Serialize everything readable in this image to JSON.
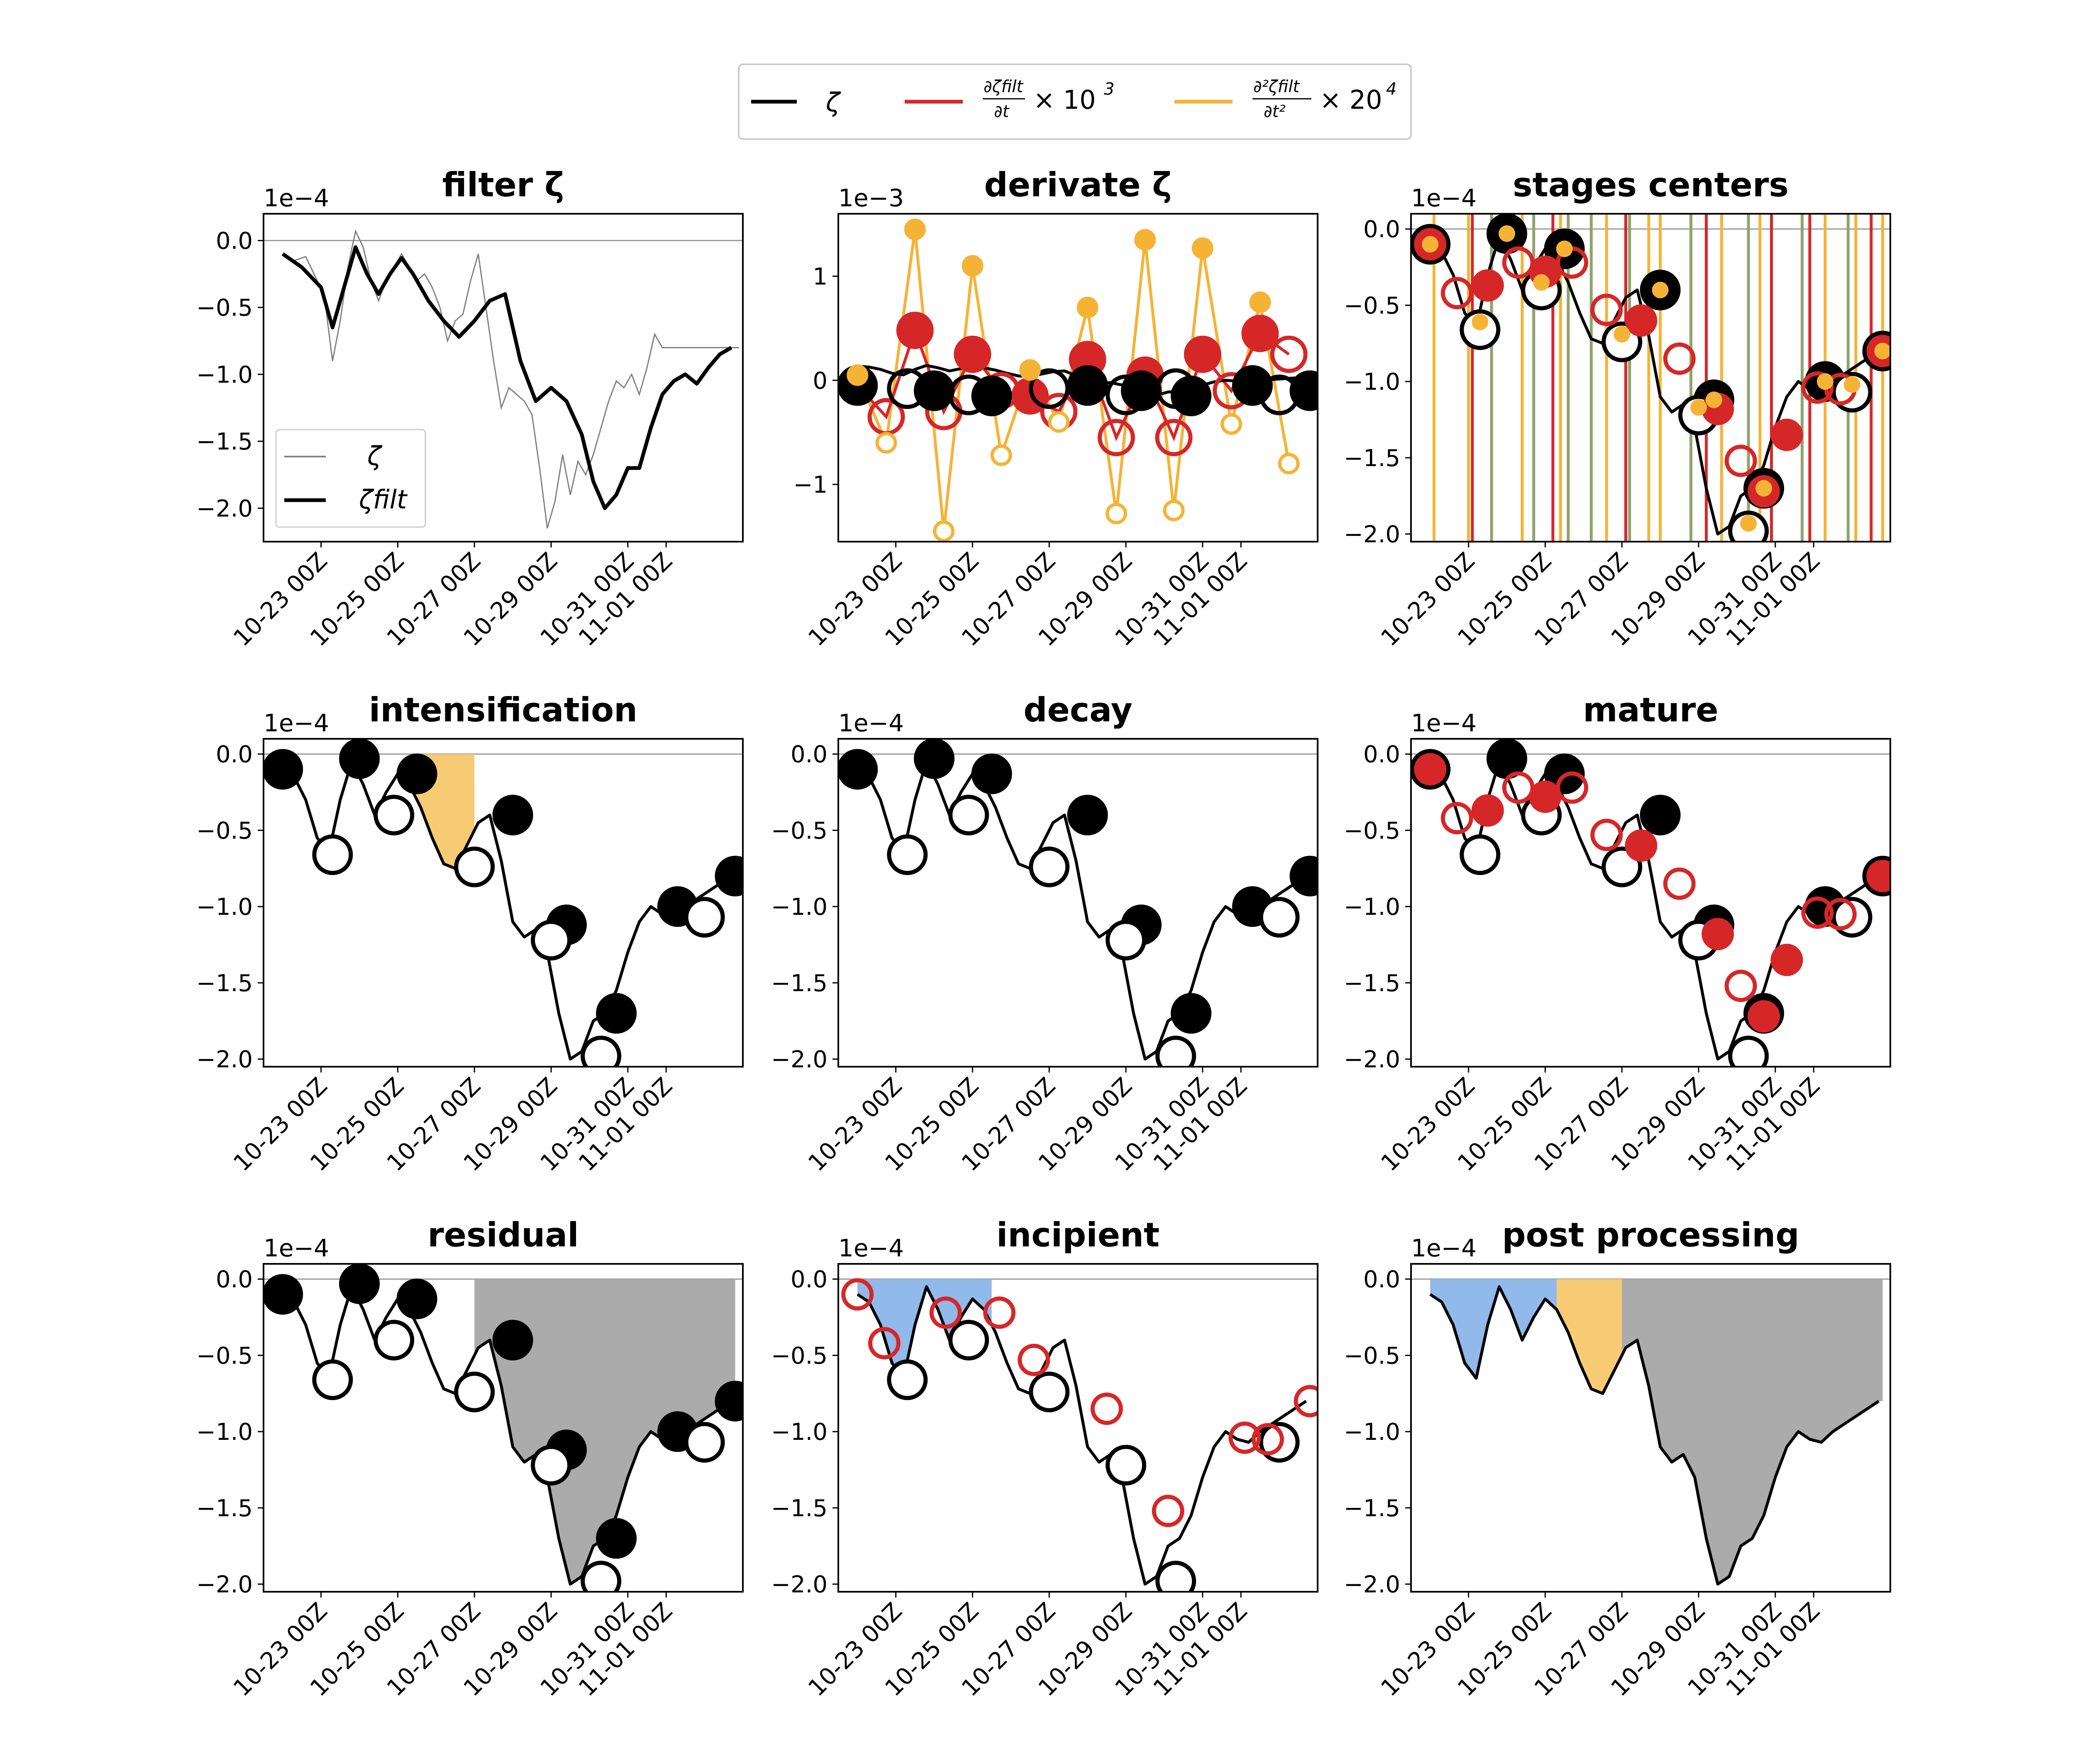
{
  "figure": {
    "legend": [
      {
        "label": "ζ",
        "color": "#000000"
      },
      {
        "label_num": "∂ζfilt",
        "label_den": "∂t",
        "suffix": "× 10",
        "exp": "3",
        "color": "#d62728"
      },
      {
        "label_num": "∂²ζfilt",
        "label_den": "∂t²",
        "suffix": "× 20",
        "exp": "4",
        "color": "#f5b335"
      }
    ]
  },
  "colors": {
    "zeta": "#000000",
    "raw": "#808080",
    "d1": "#d62728",
    "d2": "#f5b335",
    "olive": "#8fa36b",
    "incipient_fill": "#8bb5e8",
    "intens_fill": "#f7c86b",
    "resid_fill": "#a6a6a6"
  },
  "chart_data": [
    {
      "id": "filter",
      "title": "filter ζ",
      "type": "line",
      "multiplier": "1e−4",
      "ylim": [
        -2.25,
        0.2
      ],
      "yticks": [
        "0.0",
        "−0.5",
        "−1.0",
        "−1.5",
        "−2.0"
      ],
      "yvals": [
        0,
        -0.5,
        -1.0,
        -1.5,
        -2.0
      ],
      "xticks": [
        "10-23 00Z",
        "10-25 00Z",
        "10-27 00Z",
        "10-29 00Z",
        "10-31 00Z",
        "11-01 00Z"
      ],
      "legend": [
        "ζ",
        "ζfilt"
      ],
      "series": [
        {
          "name": "ζ",
          "x": [
            0.0,
            0.3,
            0.6,
            0.9,
            1.1,
            1.3,
            1.5,
            1.7,
            1.9,
            2.1,
            2.3,
            2.5,
            2.7,
            2.9,
            3.1,
            3.3,
            3.5,
            3.7,
            3.9,
            4.1,
            4.3,
            4.5,
            4.7,
            4.9,
            5.1,
            5.3,
            5.5,
            5.7,
            5.9,
            6.1,
            6.3,
            6.5,
            6.7,
            6.9,
            7.1,
            7.3,
            7.5,
            7.7,
            7.9,
            8.1,
            8.3,
            8.5,
            8.7,
            8.9,
            9.1,
            9.3,
            9.5,
            9.7,
            9.9,
            10.1,
            10.3,
            10.5,
            10.7,
            10.9,
            11.1,
            11.3,
            11.5,
            11.7,
            11.9
          ],
          "y": [
            -0.1,
            -0.15,
            -0.12,
            -0.3,
            -0.45,
            -0.9,
            -0.6,
            -0.2,
            0.07,
            -0.05,
            -0.3,
            -0.45,
            -0.3,
            -0.2,
            -0.1,
            -0.2,
            -0.3,
            -0.25,
            -0.35,
            -0.5,
            -0.75,
            -0.6,
            -0.55,
            -0.3,
            -0.1,
            -0.5,
            -0.9,
            -1.25,
            -1.1,
            -1.15,
            -1.2,
            -1.3,
            -1.7,
            -2.15,
            -1.95,
            -1.6,
            -1.9,
            -1.65,
            -1.75,
            -1.6,
            -1.4,
            -1.2,
            -1.05,
            -1.1,
            -1.0,
            -1.15,
            -0.95,
            -0.7,
            -0.8,
            -0.8,
            -0.8,
            -0.8,
            -0.8,
            -0.8,
            -0.8,
            -0.8,
            -0.8,
            -0.8,
            -0.8
          ]
        },
        {
          "name": "ζfilt",
          "x": [
            0.0,
            0.5,
            1.0,
            1.3,
            1.6,
            1.9,
            2.2,
            2.5,
            2.8,
            3.1,
            3.4,
            3.8,
            4.2,
            4.6,
            5.0,
            5.4,
            5.8,
            6.2,
            6.6,
            7.0,
            7.4,
            7.8,
            8.1,
            8.4,
            8.7,
            9.0,
            9.3,
            9.6,
            9.9,
            10.2,
            10.5,
            10.8,
            11.1,
            11.4,
            11.7
          ],
          "y": [
            -0.1,
            -0.2,
            -0.35,
            -0.65,
            -0.35,
            -0.05,
            -0.25,
            -0.4,
            -0.25,
            -0.13,
            -0.25,
            -0.45,
            -0.6,
            -0.72,
            -0.6,
            -0.45,
            -0.4,
            -0.9,
            -1.2,
            -1.1,
            -1.2,
            -1.45,
            -1.8,
            -2.0,
            -1.9,
            -1.7,
            -1.7,
            -1.4,
            -1.15,
            -1.05,
            -1.0,
            -1.07,
            -0.95,
            -0.85,
            -0.8
          ]
        }
      ]
    },
    {
      "id": "derivate",
      "title": "derivate ζ",
      "type": "line",
      "multiplier": "1e−3",
      "ylim": [
        -1.55,
        1.6
      ],
      "yticks": [
        "1",
        "0",
        "−1"
      ],
      "yvals": [
        1,
        0,
        -1
      ],
      "xticks": [
        "10-23 00Z",
        "10-25 00Z",
        "10-27 00Z",
        "10-29 00Z",
        "10-31 00Z",
        "11-01 00Z"
      ],
      "series": [
        {
          "name": "∂²",
          "x": [
            0.0,
            0.75,
            1.5,
            2.25,
            3.0,
            3.75,
            4.5,
            5.25,
            6.0,
            6.75,
            7.5,
            8.25,
            9.0,
            9.75,
            10.5,
            11.25
          ],
          "y": [
            0.05,
            -0.6,
            1.45,
            -1.45,
            1.1,
            -0.72,
            0.1,
            -0.4,
            0.7,
            -1.28,
            1.35,
            -1.25,
            1.27,
            -0.42,
            0.75,
            -0.8
          ]
        },
        {
          "name": "∂",
          "x": [
            0.0,
            0.75,
            1.5,
            2.25,
            3.0,
            3.75,
            4.5,
            5.25,
            6.0,
            6.75,
            7.5,
            8.25,
            9.0,
            9.75,
            10.5,
            11.25
          ],
          "y": [
            -0.05,
            -0.35,
            0.48,
            -0.3,
            0.25,
            -0.1,
            -0.15,
            -0.3,
            0.2,
            -0.55,
            0.05,
            -0.55,
            0.25,
            -0.1,
            0.45,
            0.25
          ]
        }
      ]
    },
    {
      "id": "stages",
      "title": "stages centers",
      "type": "line",
      "multiplier": "1e−4"
    },
    {
      "id": "intensification",
      "title": "intensification",
      "type": "line",
      "multiplier": "1e−4"
    },
    {
      "id": "decay",
      "title": "decay",
      "type": "line",
      "multiplier": "1e−4"
    },
    {
      "id": "mature",
      "title": "mature",
      "type": "line",
      "multiplier": "1e−4"
    },
    {
      "id": "residual",
      "title": "residual",
      "type": "area",
      "multiplier": "1e−4"
    },
    {
      "id": "incipient",
      "title": "incipient",
      "type": "area",
      "multiplier": "1e−4"
    },
    {
      "id": "post",
      "title": "post processing",
      "type": "area",
      "multiplier": "1e−4"
    }
  ],
  "shared": {
    "ylim": [
      -2.05,
      0.1
    ],
    "yticks": [
      "0.0",
      "−0.5",
      "−1.0",
      "−1.5",
      "−2.0"
    ],
    "yvals": [
      0,
      -0.5,
      -1.0,
      -1.5,
      -2.0
    ],
    "xticks": [
      "10-23 00Z",
      "10-25 00Z",
      "10-27 00Z",
      "10-29 00Z",
      "10-31 00Z",
      "11-01 00Z"
    ],
    "xtick_vals": [
      1.0,
      3.0,
      5.0,
      7.0,
      9.0,
      10.0
    ],
    "xlim": [
      -0.5,
      12.0
    ],
    "zeta": {
      "x": [
        0.0,
        0.3,
        0.6,
        0.9,
        1.2,
        1.5,
        1.8,
        2.1,
        2.4,
        2.7,
        3.0,
        3.3,
        3.6,
        3.9,
        4.2,
        4.5,
        4.8,
        5.1,
        5.4,
        5.7,
        6.0,
        6.3,
        6.6,
        6.9,
        7.2,
        7.5,
        7.8,
        8.1,
        8.4,
        8.7,
        9.0,
        9.3,
        9.6,
        9.9,
        10.2,
        10.5,
        10.8,
        11.1,
        11.4,
        11.7
      ],
      "y": [
        -0.1,
        -0.15,
        -0.3,
        -0.55,
        -0.65,
        -0.3,
        -0.05,
        -0.2,
        -0.4,
        -0.25,
        -0.13,
        -0.2,
        -0.35,
        -0.55,
        -0.72,
        -0.75,
        -0.6,
        -0.45,
        -0.4,
        -0.7,
        -1.1,
        -1.2,
        -1.15,
        -1.3,
        -1.7,
        -2.0,
        -1.95,
        -1.75,
        -1.7,
        -1.55,
        -1.3,
        -1.1,
        -1.0,
        -1.05,
        -1.07,
        -1.0,
        -0.95,
        -0.9,
        -0.85,
        -0.8
      ]
    },
    "maxima": {
      "x": [
        0.0,
        2.0,
        3.5,
        6.0,
        7.4,
        8.7,
        10.3,
        11.8
      ],
      "y": [
        -0.1,
        -0.03,
        -0.13,
        -0.4,
        -1.12,
        -1.7,
        -1.0,
        -0.8
      ]
    },
    "minima": {
      "x": [
        1.3,
        2.9,
        5.0,
        7.0,
        8.3,
        11.0
      ],
      "y": [
        -0.66,
        -0.4,
        -0.74,
        -1.22,
        -1.98,
        -1.07
      ]
    },
    "d1_points": {
      "x": [
        0.0,
        0.7,
        1.5,
        2.3,
        3.0,
        3.7,
        4.6,
        5.5,
        6.5,
        7.5,
        8.1,
        8.7,
        9.3,
        10.1,
        10.7,
        11.8
      ],
      "y": [
        -0.1,
        -0.42,
        -0.37,
        -0.22,
        -0.28,
        -0.22,
        -0.53,
        -0.6,
        -0.85,
        -1.18,
        -1.52,
        -1.72,
        -1.35,
        -1.04,
        -1.05,
        -0.8
      ]
    },
    "d1_filled_idx": [
      0,
      2,
      4,
      7,
      9,
      11,
      12,
      15
    ]
  },
  "stages_lines": {
    "olive": [
      1.6,
      2.7,
      3.6,
      4.2,
      5.2,
      6.8,
      8.3,
      9.7,
      10.9
    ],
    "red": [
      1.1,
      3.2,
      5.1,
      7.2,
      8.9,
      9.9,
      11.5
    ],
    "yellow": [
      0.1,
      1.0,
      2.4,
      3.4,
      4.6,
      5.7,
      6.0,
      7.6,
      8.6,
      10.3,
      11.1,
      11.8
    ]
  },
  "spans": {
    "intensification": [
      [
        3.5,
        5.0
      ]
    ],
    "residual": [
      [
        5.0,
        11.8
      ]
    ],
    "incipient": [
      [
        0.0,
        3.5
      ]
    ],
    "post_incipient": [
      [
        0.0,
        3.3
      ]
    ],
    "post_intens": [
      [
        3.3,
        5.0
      ]
    ],
    "post_resid": [
      [
        5.0,
        11.8
      ]
    ]
  }
}
